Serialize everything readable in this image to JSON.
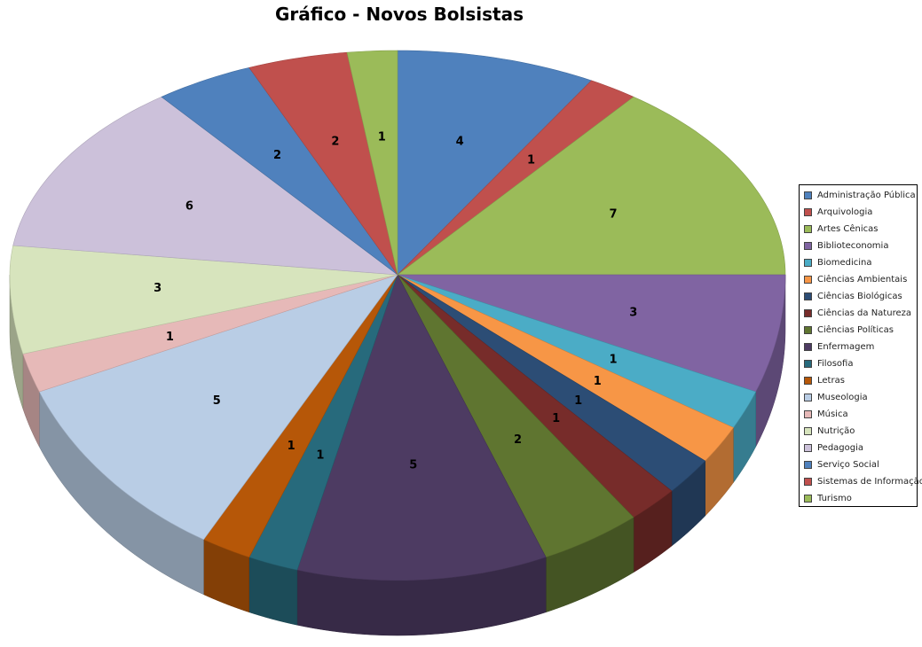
{
  "chart_data": {
    "type": "pie",
    "title": "Gráfico - Novos Bolsistas",
    "legend_position": "right",
    "three_d": true,
    "categories": [
      "Administração Pública",
      "Arquivologia",
      "Artes Cênicas",
      "Biblioteconomia",
      "Biomedicina",
      "Ciências Ambientais",
      "Ciências Biológicas",
      "Ciências da Natureza",
      "Ciências Políticas",
      "Enfermagem",
      "Filosofia",
      "Letras",
      "Museologia",
      "Música",
      "Nutrição",
      "Pedagogia",
      "Serviço Social",
      "Sistemas de Informação",
      "Turismo"
    ],
    "values": [
      4,
      1,
      7,
      3,
      1,
      1,
      1,
      1,
      2,
      5,
      1,
      1,
      5,
      1,
      3,
      6,
      2,
      2,
      1
    ],
    "colors": [
      "#4F81BD",
      "#C0504D",
      "#9BBB59",
      "#8064A2",
      "#4BACC6",
      "#F79646",
      "#2C4D75",
      "#772C2A",
      "#5F7530",
      "#4D3B62",
      "#276A7C",
      "#B65708",
      "#B9CDE5",
      "#E6B9B8",
      "#D7E4BD",
      "#CCC1DA",
      "#4F81BD",
      "#C0504D",
      "#9BBB59"
    ]
  }
}
